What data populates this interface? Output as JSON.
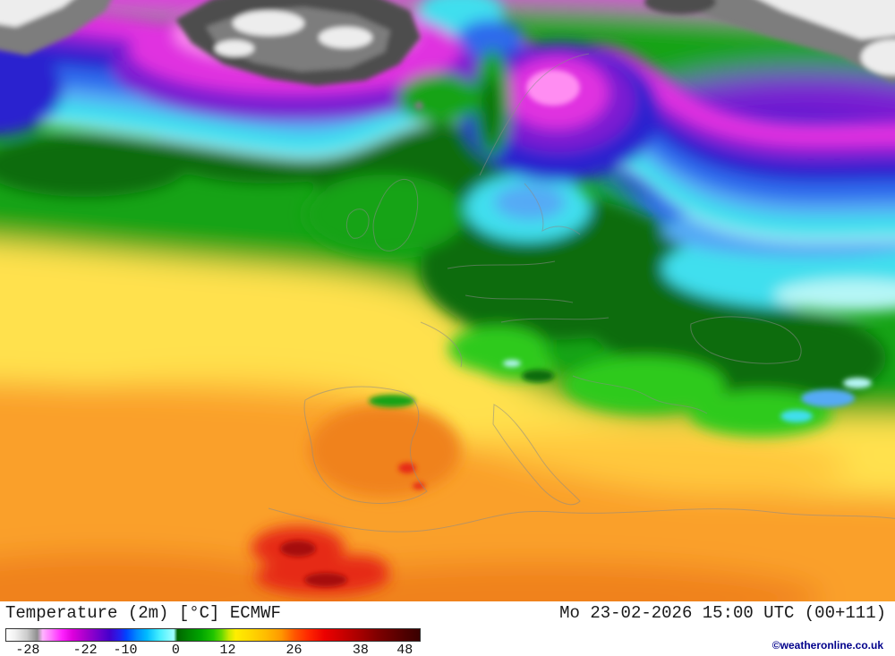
{
  "legend": {
    "title": "Temperature (2m) [°C] ECMWF",
    "timestamp": "Mo 23-02-2026 15:00 UTC (00+111)",
    "copyright": "©weatheronline.co.uk"
  },
  "scale": {
    "unit": "°C",
    "ticks": [
      {
        "label": "-28",
        "pos": 5.4
      },
      {
        "label": "-22",
        "pos": 19.3
      },
      {
        "label": "-10",
        "pos": 29.0
      },
      {
        "label": "0",
        "pos": 41.2
      },
      {
        "label": "12",
        "pos": 53.8
      },
      {
        "label": "26",
        "pos": 69.8
      },
      {
        "label": "38",
        "pos": 85.9
      },
      {
        "label": "48",
        "pos": 96.6
      }
    ],
    "gradient_stops": [
      {
        "pos": 0,
        "color": "#ffffff"
      },
      {
        "pos": 2,
        "color": "#f2f2f2"
      },
      {
        "pos": 5,
        "color": "#cccccc"
      },
      {
        "pos": 7.5,
        "color": "#8f8f8f"
      },
      {
        "pos": 8.8,
        "color": "#ffb3ff"
      },
      {
        "pos": 11,
        "color": "#ff73ff"
      },
      {
        "pos": 13.5,
        "color": "#ff22ff"
      },
      {
        "pos": 16,
        "color": "#dd00dd"
      },
      {
        "pos": 19.3,
        "color": "#a500cc"
      },
      {
        "pos": 22,
        "color": "#7700cc"
      },
      {
        "pos": 25,
        "color": "#4400cc"
      },
      {
        "pos": 27.5,
        "color": "#2222ee"
      },
      {
        "pos": 29,
        "color": "#0044ff"
      },
      {
        "pos": 31.5,
        "color": "#0088ff"
      },
      {
        "pos": 34,
        "color": "#00bbff"
      },
      {
        "pos": 37,
        "color": "#44eeff"
      },
      {
        "pos": 40.5,
        "color": "#a0ffff"
      },
      {
        "pos": 41.4,
        "color": "#006600"
      },
      {
        "pos": 44,
        "color": "#008500"
      },
      {
        "pos": 47,
        "color": "#00a400"
      },
      {
        "pos": 50,
        "color": "#1fc400"
      },
      {
        "pos": 52,
        "color": "#63d800"
      },
      {
        "pos": 53.8,
        "color": "#c9e800"
      },
      {
        "pos": 55.5,
        "color": "#ffee00"
      },
      {
        "pos": 59,
        "color": "#ffd800"
      },
      {
        "pos": 63,
        "color": "#ffba00"
      },
      {
        "pos": 66.5,
        "color": "#ff9700"
      },
      {
        "pos": 69.8,
        "color": "#ff5500"
      },
      {
        "pos": 73,
        "color": "#ff2800"
      },
      {
        "pos": 77,
        "color": "#ec0000"
      },
      {
        "pos": 81,
        "color": "#cc0000"
      },
      {
        "pos": 85.9,
        "color": "#a30000"
      },
      {
        "pos": 90,
        "color": "#7e0000"
      },
      {
        "pos": 96.6,
        "color": "#4e0000"
      },
      {
        "pos": 100,
        "color": "#3a0000"
      }
    ]
  },
  "map_colors": {
    "magenta": "#e030e0",
    "pink": "#ff8df2",
    "purple": "#7a1ed2",
    "dark_blue": "#2a23cf",
    "blue": "#2f6bec",
    "light_blue": "#55aaf5",
    "cyan": "#3fdfee",
    "pale_cyan": "#b5f6f6",
    "dark_green": "#076c0c",
    "green": "#12a314",
    "bright_green": "#2fca1f",
    "yellow": "#ffe14e",
    "gold": "#ffc83c",
    "orange": "#faa02b",
    "deep_orange": "#f0821f",
    "red": "#e62a16",
    "dark_red": "#a61108",
    "land_gray": "#7d7d7d",
    "land_dark": "#4d4d4d",
    "land_light": "#ededed",
    "border": "#8a8a8a"
  }
}
